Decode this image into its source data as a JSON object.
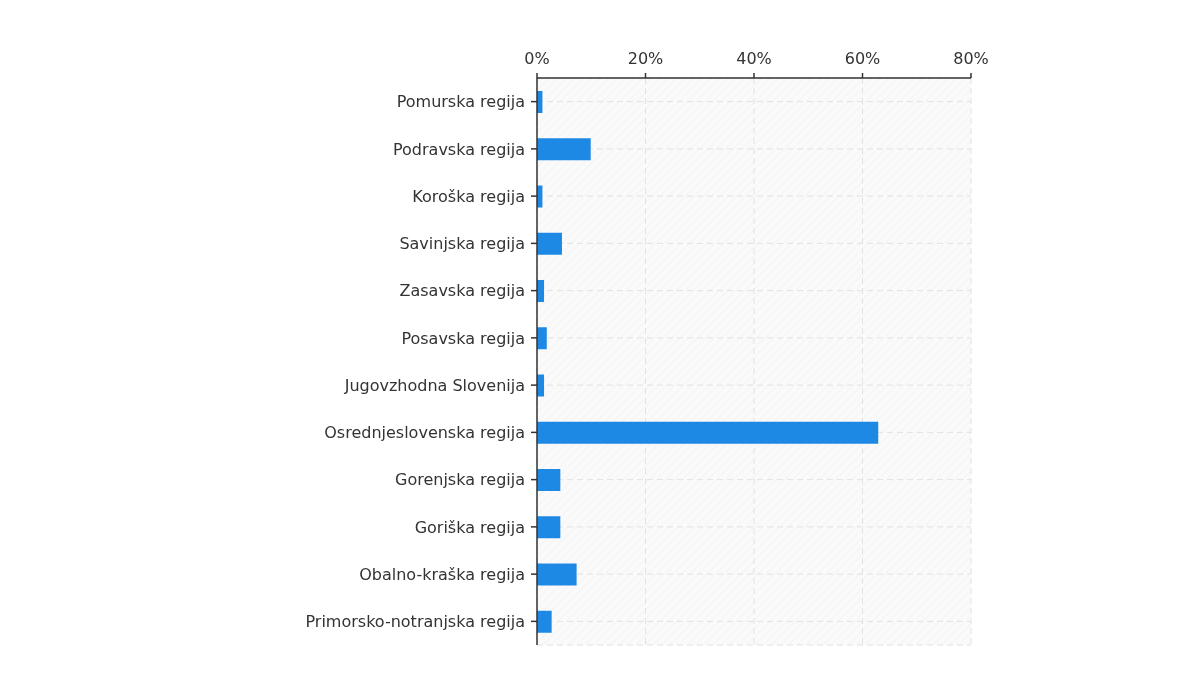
{
  "chart_data": {
    "type": "bar",
    "orientation": "horizontal",
    "categories": [
      "Pomurska regija",
      "Podravska regija",
      "Koroška regija",
      "Savinjska regija",
      "Zasavska regija",
      "Posavska regija",
      "Jugovzhodna Slovenija",
      "Osrednjeslovenska regija",
      "Gorenjska regija",
      "Goriška regija",
      "Obalno-kraška regija",
      "Primorsko-notranjska regija"
    ],
    "values": [
      1.0,
      9.9,
      1.0,
      4.6,
      1.3,
      1.8,
      1.3,
      62.9,
      4.3,
      4.3,
      7.3,
      2.7
    ],
    "color": "#1e88e5",
    "xlim": [
      0,
      80
    ],
    "xticks": [
      {
        "value": 0,
        "label": "0%"
      },
      {
        "value": 20,
        "label": "20%"
      },
      {
        "value": 40,
        "label": "40%"
      },
      {
        "value": 60,
        "label": "60%"
      },
      {
        "value": 80,
        "label": "80%"
      }
    ],
    "grid": true
  }
}
